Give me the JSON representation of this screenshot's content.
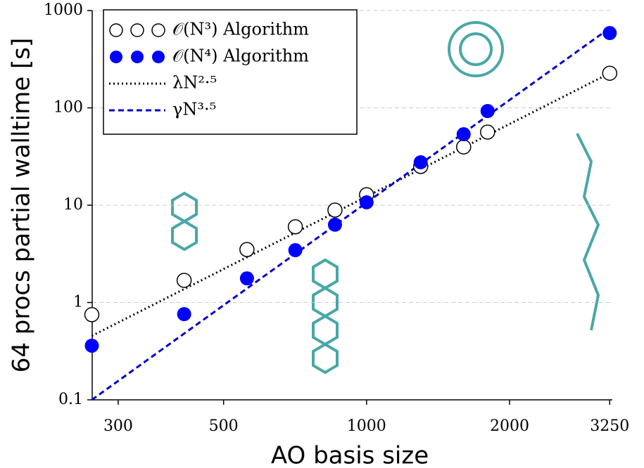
{
  "chart_data": {
    "type": "scatter",
    "xlabel": "AO basis size",
    "ylabel": "64 procs partial walltime [s]",
    "xscale": "log",
    "yscale": "log",
    "xlim": [
      260,
      3500
    ],
    "ylim": [
      0.1,
      1000
    ],
    "xticks": [
      300,
      500,
      1000,
      2000,
      3250
    ],
    "yticks": [
      0.1,
      1,
      10,
      100,
      1000
    ],
    "grid": true,
    "legend": "upper left",
    "series": [
      {
        "name": "𝒪(N³) Algorithm",
        "style": "open",
        "color": "#000000",
        "x": [
          264,
          413,
          560,
          708,
          858,
          1000,
          1300,
          1601,
          1798,
          3250
        ],
        "values": [
          0.75,
          1.69,
          3.5,
          6.0,
          8.9,
          12.8,
          25,
          39.7,
          56.4,
          227
        ]
      },
      {
        "name": "𝒪(N⁴) Algorithm",
        "style": "filled",
        "color": "#0000ff",
        "x": [
          264,
          413,
          560,
          708,
          858,
          1000,
          1300,
          1601,
          1798,
          3250
        ],
        "values": [
          0.36,
          0.76,
          1.77,
          3.45,
          6.3,
          10.7,
          27.6,
          53.6,
          92.8,
          587
        ]
      },
      {
        "name": "λN²·⁵",
        "style": "dotted",
        "color": "#000000",
        "x": [
          264,
          3250
        ],
        "values": [
          0.454,
          227
        ]
      },
      {
        "name": "γN³·⁵",
        "style": "dashed",
        "color": "#0000cc",
        "x": [
          264,
          3250
        ],
        "values": [
          0.1,
          660
        ]
      }
    ]
  }
}
